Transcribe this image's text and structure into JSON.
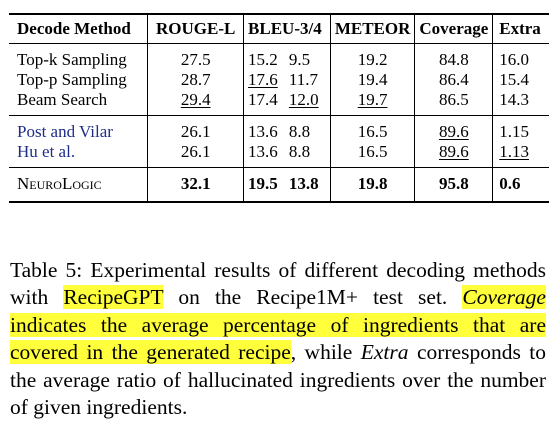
{
  "table": {
    "headers": [
      "Decode Method",
      "ROUGE-L",
      "BLEU-3/4",
      "METEOR",
      "Coverage",
      "Extra"
    ],
    "rows": [
      {
        "method": "Top-k Sampling",
        "rouge": "27.5",
        "bleu3": "15.2",
        "bleu4": "9.5",
        "meteor": "19.2",
        "coverage": "84.8",
        "extra": "16.0"
      },
      {
        "method": "Top-p Sampling",
        "rouge": "28.7",
        "bleu3": "17.6",
        "bleu4": "11.7",
        "meteor": "19.4",
        "coverage": "86.4",
        "extra": "15.4"
      },
      {
        "method": "Beam Search",
        "rouge": "29.4",
        "bleu3": "17.4",
        "bleu4": "12.0",
        "meteor": "19.7",
        "coverage": "86.5",
        "extra": "14.3"
      },
      {
        "method": "Post and Vilar",
        "rouge": "26.1",
        "bleu3": "13.6",
        "bleu4": "8.8",
        "meteor": "16.5",
        "coverage": "89.6",
        "extra": "1.15"
      },
      {
        "method": "Hu et al.",
        "rouge": "26.1",
        "bleu3": "13.6",
        "bleu4": "8.8",
        "meteor": "16.5",
        "coverage": "89.6",
        "extra": "1.13"
      },
      {
        "method": "NeuroLogic",
        "rouge": "32.1",
        "bleu3": "19.5",
        "bleu4": "13.8",
        "meteor": "19.8",
        "coverage": "95.8",
        "extra": "0.6"
      }
    ]
  },
  "caption": {
    "t1": "Table 5:  Experimental results of different decoding methods with ",
    "t2": "RecipeGPT",
    "t3": " on the Recipe1M+ test set. ",
    "t4": "Coverage",
    "t5": " indicates the average percentage of ingredients that are covered in the generated recipe",
    "t6": ", while ",
    "t7": "Extra",
    "t8": " corresponds to the average ratio of hallucinated ingredients over the number of given ingredients."
  },
  "colors": {
    "highlight": "#ffff3b",
    "link_blue": "#1f2d8a"
  }
}
